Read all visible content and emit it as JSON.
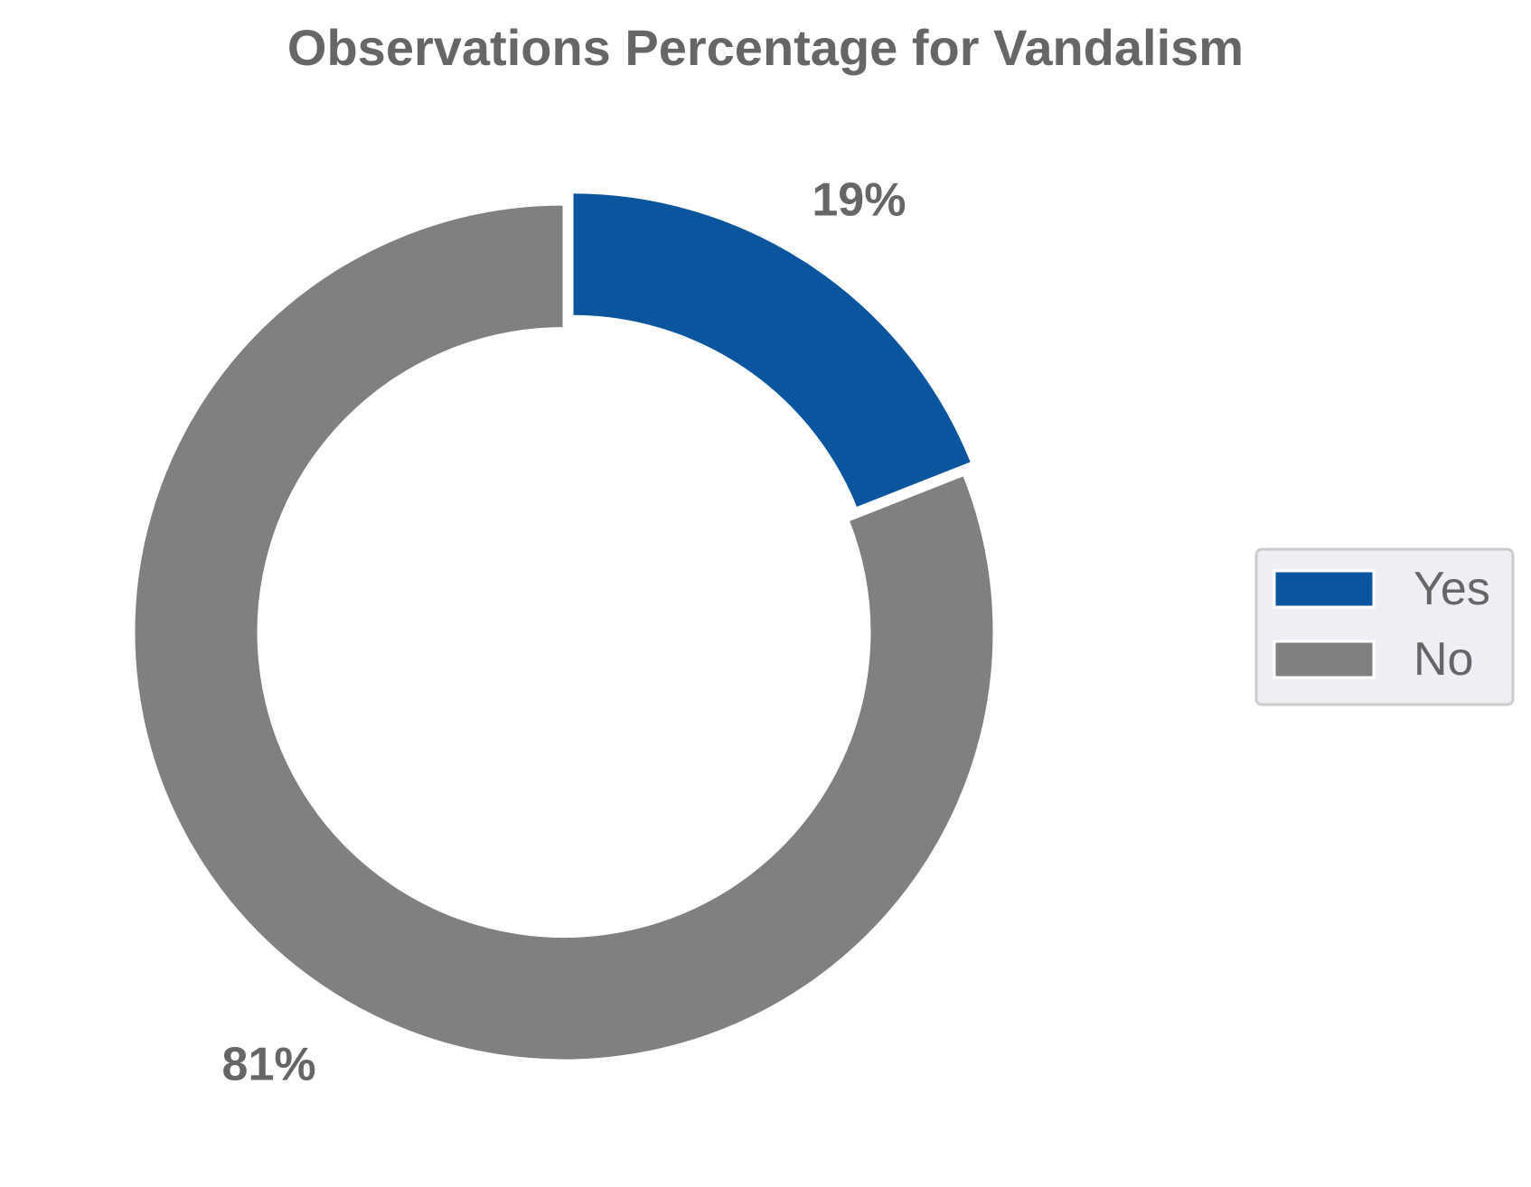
{
  "chart_data": {
    "type": "pie",
    "subtype": "donut",
    "title": "Observations Percentage for Vandalism",
    "categories": [
      "Yes",
      "No"
    ],
    "values": [
      19,
      81
    ],
    "labels": [
      "19%",
      "81%"
    ],
    "colors": [
      "#0b559f",
      "#808080"
    ],
    "explode": [
      true,
      false
    ],
    "legend": {
      "placement": "right",
      "entries": [
        "Yes",
        "No"
      ]
    },
    "start_angle": "top",
    "direction": "clockwise"
  }
}
